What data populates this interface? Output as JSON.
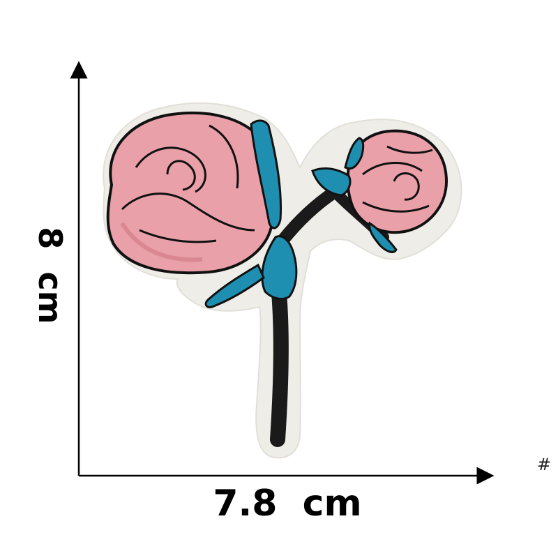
{
  "labels": {
    "height": "8  cm",
    "width": "7.8  cm",
    "corner_mark": "#"
  },
  "colors": {
    "petal": "#e9a0a8",
    "petal_shade": "#d98790",
    "leaf": "#1e8fb0",
    "stem": "#1a1a1a",
    "outline": "#111111",
    "backing": "#efede8",
    "axis": "#000000"
  },
  "subject": {
    "item": "embroidered-rose-patch"
  }
}
